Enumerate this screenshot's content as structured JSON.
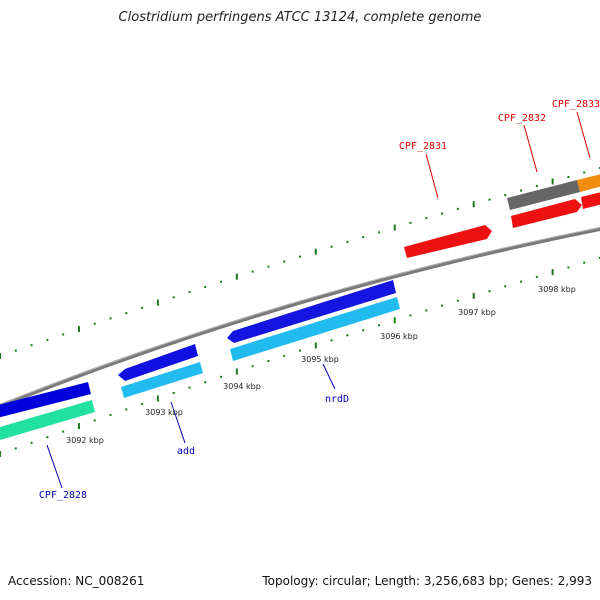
{
  "title": "Clostridium perfringens ATCC 13124, complete genome",
  "footer": {
    "accession": "Accession: NC_008261",
    "summary": "Topology: circular; Length: 3,256,683 bp; Genes: 2,993"
  },
  "colors": {
    "backbone": "#808080",
    "ticks": "#1a7a1a",
    "label_forward": "#e00000",
    "label_reverse": "#0000b0",
    "tick_text": "#222222"
  },
  "scale_labels": [
    "3092 kbp",
    "3093 kbp",
    "3094 kbp",
    "3095 kbp",
    "3096 kbp",
    "3097 kbp",
    "3098 kbp"
  ],
  "gene_labels": {
    "cpf2828": "CPF_2828",
    "add": "add",
    "nrdD": "nrdD",
    "cpf2831": "CPF_2831",
    "cpf2832": "CPF_2832",
    "cpf2833": "CPF_2833"
  }
}
